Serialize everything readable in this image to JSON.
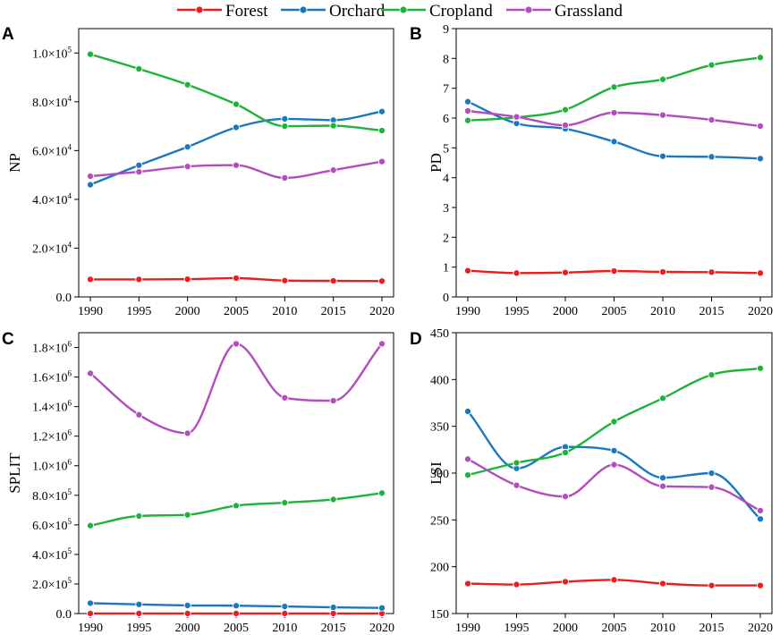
{
  "legend": [
    {
      "name": "Forest",
      "color": "#ee1c1c"
    },
    {
      "name": "Orchard",
      "color": "#1a78be"
    },
    {
      "name": "Cropland",
      "color": "#1db33a"
    },
    {
      "name": "Grassland",
      "color": "#b44bbf"
    }
  ],
  "chart_data": [
    {
      "panel": "A",
      "type": "line",
      "title": "",
      "xlabel": "",
      "ylabel": "NP",
      "x": [
        1990,
        1995,
        2000,
        2005,
        2010,
        2015,
        2020
      ],
      "xticks": [
        "1990",
        "1995",
        "2000",
        "2005",
        "2010",
        "2015",
        "2020"
      ],
      "ylim": [
        0,
        110000
      ],
      "yticks": [
        {
          "value": 0,
          "base": "0.0",
          "exp": ""
        },
        {
          "value": 20000,
          "base": "2.0×10",
          "exp": "4"
        },
        {
          "value": 40000,
          "base": "4.0×10",
          "exp": "4"
        },
        {
          "value": 60000,
          "base": "6.0×10",
          "exp": "4"
        },
        {
          "value": 80000,
          "base": "8.0×10",
          "exp": "4"
        },
        {
          "value": 100000,
          "base": "1.0×10",
          "exp": "5"
        }
      ],
      "series": [
        {
          "name": "Forest",
          "values": [
            7200,
            7200,
            7300,
            7700,
            6700,
            6600,
            6500
          ]
        },
        {
          "name": "Orchard",
          "values": [
            46000,
            54000,
            61500,
            69500,
            73000,
            72500,
            76000
          ]
        },
        {
          "name": "Cropland",
          "values": [
            99500,
            93500,
            87000,
            79000,
            70000,
            70200,
            68200
          ]
        },
        {
          "name": "Grassland",
          "values": [
            49500,
            51300,
            53500,
            54000,
            48800,
            52000,
            55500
          ]
        }
      ]
    },
    {
      "panel": "B",
      "type": "line",
      "title": "",
      "xlabel": "",
      "ylabel": "PD",
      "x": [
        1990,
        1995,
        2000,
        2005,
        2010,
        2015,
        2020
      ],
      "xticks": [
        "1990",
        "1995",
        "2000",
        "2005",
        "2010",
        "2015",
        "2020"
      ],
      "ylim": [
        0,
        9
      ],
      "yticks": [
        {
          "value": 0,
          "base": "0",
          "exp": ""
        },
        {
          "value": 1,
          "base": "1",
          "exp": ""
        },
        {
          "value": 2,
          "base": "2",
          "exp": ""
        },
        {
          "value": 3,
          "base": "3",
          "exp": ""
        },
        {
          "value": 4,
          "base": "4",
          "exp": ""
        },
        {
          "value": 5,
          "base": "5",
          "exp": ""
        },
        {
          "value": 6,
          "base": "6",
          "exp": ""
        },
        {
          "value": 7,
          "base": "7",
          "exp": ""
        },
        {
          "value": 8,
          "base": "8",
          "exp": ""
        },
        {
          "value": 9,
          "base": "9",
          "exp": ""
        }
      ],
      "series": [
        {
          "name": "Forest",
          "values": [
            0.88,
            0.8,
            0.82,
            0.87,
            0.84,
            0.83,
            0.8
          ]
        },
        {
          "name": "Orchard",
          "values": [
            6.55,
            5.82,
            5.64,
            5.21,
            4.72,
            4.7,
            4.64
          ]
        },
        {
          "name": "Cropland",
          "values": [
            5.92,
            6.02,
            6.28,
            7.04,
            7.3,
            7.78,
            8.03
          ]
        },
        {
          "name": "Grassland",
          "values": [
            6.24,
            6.04,
            5.76,
            6.18,
            6.1,
            5.94,
            5.73
          ]
        }
      ]
    },
    {
      "panel": "C",
      "type": "line",
      "title": "",
      "xlabel": "",
      "ylabel": "SPLIT",
      "x": [
        1990,
        1995,
        2000,
        2005,
        2010,
        2015,
        2020
      ],
      "xticks": [
        "1990",
        "1995",
        "2000",
        "2005",
        "2010",
        "2015",
        "2020"
      ],
      "ylim": [
        0,
        1900000
      ],
      "yticks": [
        {
          "value": 0,
          "base": "0.0",
          "exp": ""
        },
        {
          "value": 200000,
          "base": "2.0×10",
          "exp": "5"
        },
        {
          "value": 400000,
          "base": "4.0×10",
          "exp": "5"
        },
        {
          "value": 600000,
          "base": "6.0×10",
          "exp": "5"
        },
        {
          "value": 800000,
          "base": "8.0×10",
          "exp": "5"
        },
        {
          "value": 1000000,
          "base": "1.0×10",
          "exp": "6"
        },
        {
          "value": 1200000,
          "base": "1.2×10",
          "exp": "6"
        },
        {
          "value": 1400000,
          "base": "1.4×10",
          "exp": "6"
        },
        {
          "value": 1600000,
          "base": "1.6×10",
          "exp": "6"
        },
        {
          "value": 1800000,
          "base": "1.8×10",
          "exp": "6"
        }
      ],
      "series": [
        {
          "name": "Forest",
          "values": [
            500,
            500,
            500,
            500,
            500,
            500,
            500
          ]
        },
        {
          "name": "Orchard",
          "values": [
            70000,
            62000,
            55000,
            53000,
            48000,
            42000,
            38000
          ]
        },
        {
          "name": "Cropland",
          "values": [
            595000,
            660000,
            668000,
            730000,
            750000,
            772000,
            815000
          ]
        },
        {
          "name": "Grassland",
          "values": [
            1625000,
            1345000,
            1220000,
            1825000,
            1460000,
            1440000,
            1825000
          ]
        }
      ]
    },
    {
      "panel": "D",
      "type": "line",
      "title": "",
      "xlabel": "",
      "ylabel": "LSI",
      "x": [
        1990,
        1995,
        2000,
        2005,
        2010,
        2015,
        2020
      ],
      "xticks": [
        "1990",
        "1995",
        "2000",
        "2005",
        "2010",
        "2015",
        "2020"
      ],
      "ylim": [
        150,
        450
      ],
      "yticks": [
        {
          "value": 150,
          "base": "150",
          "exp": ""
        },
        {
          "value": 200,
          "base": "200",
          "exp": ""
        },
        {
          "value": 250,
          "base": "250",
          "exp": ""
        },
        {
          "value": 300,
          "base": "300",
          "exp": ""
        },
        {
          "value": 350,
          "base": "350",
          "exp": ""
        },
        {
          "value": 400,
          "base": "400",
          "exp": ""
        },
        {
          "value": 450,
          "base": "450",
          "exp": ""
        }
      ],
      "series": [
        {
          "name": "Forest",
          "values": [
            182,
            181,
            184,
            186,
            182,
            180,
            180
          ]
        },
        {
          "name": "Orchard",
          "values": [
            366,
            305,
            328,
            324,
            295,
            300,
            251
          ]
        },
        {
          "name": "Cropland",
          "values": [
            298,
            311,
            322,
            355,
            380,
            405,
            412
          ]
        },
        {
          "name": "Grassland",
          "values": [
            315,
            287,
            275,
            309,
            286,
            285,
            260
          ]
        }
      ]
    }
  ]
}
